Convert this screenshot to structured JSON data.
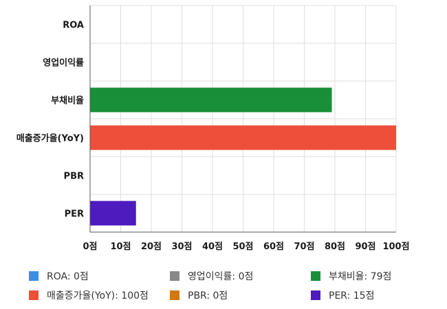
{
  "chart_data": {
    "type": "bar",
    "orientation": "horizontal",
    "categories": [
      "ROA",
      "영업이익률",
      "부채비율",
      "매출증가율(YoY)",
      "PBR",
      "PER"
    ],
    "values": [
      0,
      0,
      79,
      100,
      0,
      15
    ],
    "colors": [
      "#3a8ee6",
      "#888888",
      "#1a8f3a",
      "#ee4f3a",
      "#d4770f",
      "#4e1bbf"
    ],
    "xlim": [
      0,
      100
    ],
    "xticks": [
      "0점",
      "10점",
      "20점",
      "30점",
      "40점",
      "50점",
      "60점",
      "70점",
      "80점",
      "90점",
      "100점"
    ],
    "grid": true,
    "legend_placement": "bottom"
  },
  "legend": [
    {
      "label": "ROA: 0점",
      "color": "#3a8ee6"
    },
    {
      "label": "영업이익률: 0점",
      "color": "#888888"
    },
    {
      "label": "부채비율: 79점",
      "color": "#1a8f3a"
    },
    {
      "label": "매출증가율(YoY): 100점",
      "color": "#ee4f3a"
    },
    {
      "label": "PBR: 0점",
      "color": "#d4770f"
    },
    {
      "label": "PER: 15점",
      "color": "#4e1bbf"
    }
  ]
}
